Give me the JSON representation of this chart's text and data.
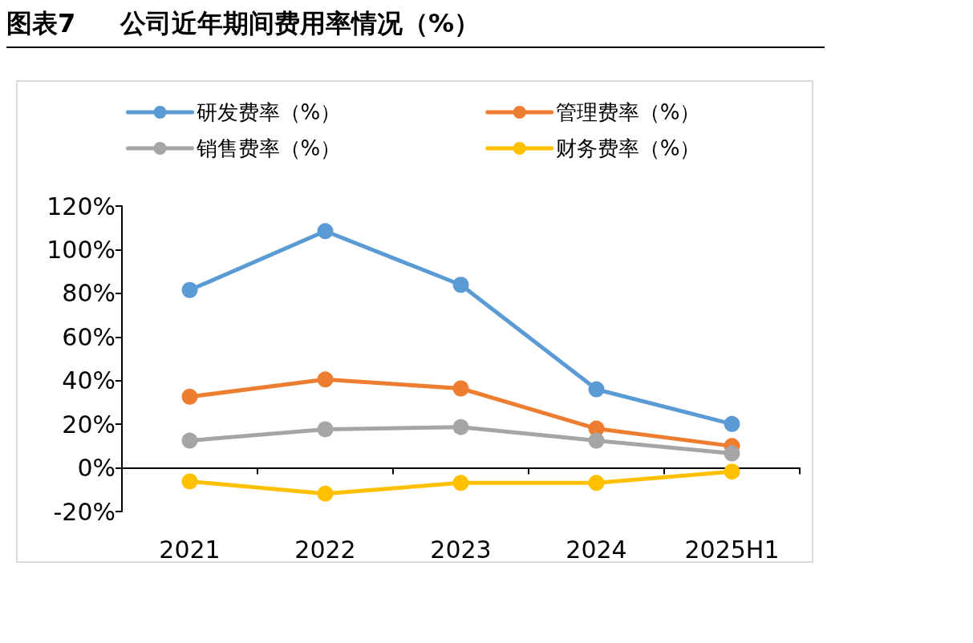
{
  "chart_data": {
    "type": "line",
    "title": "图表7     公司近年期间费用率情况（%）",
    "categories": [
      "2021",
      "2022",
      "2023",
      "2024",
      "2025H1"
    ],
    "series": [
      {
        "name": "研发费率（%）",
        "color": "#5b9bd5",
        "values": [
          81.5,
          108.5,
          83.9,
          36,
          20.1
        ]
      },
      {
        "name": "管理费率（%）",
        "color": "#ed7d31",
        "values": [
          32.6,
          40.5,
          36.4,
          18,
          10
        ]
      },
      {
        "name": "销售费率（%）",
        "color": "#a5a5a5",
        "values": [
          12.5,
          17.7,
          18.7,
          12.5,
          6.6
        ]
      },
      {
        "name": "财务费率（%）",
        "color": "#ffc000",
        "values": [
          -6.2,
          -11.8,
          -6.9,
          -6.9,
          -1.7
        ]
      }
    ],
    "ylim": [
      -20,
      120
    ],
    "yticks": [
      {
        "value": -20,
        "label": "-20%"
      },
      {
        "value": 0,
        "label": "0%"
      },
      {
        "value": 20,
        "label": "20%"
      },
      {
        "value": 40,
        "label": "40%"
      },
      {
        "value": 60,
        "label": "60%"
      },
      {
        "value": 80,
        "label": "80%"
      },
      {
        "value": 100,
        "label": "100%"
      },
      {
        "value": 120,
        "label": "120%"
      }
    ],
    "legend": "top",
    "marker": "circle",
    "line_style": "solid"
  }
}
